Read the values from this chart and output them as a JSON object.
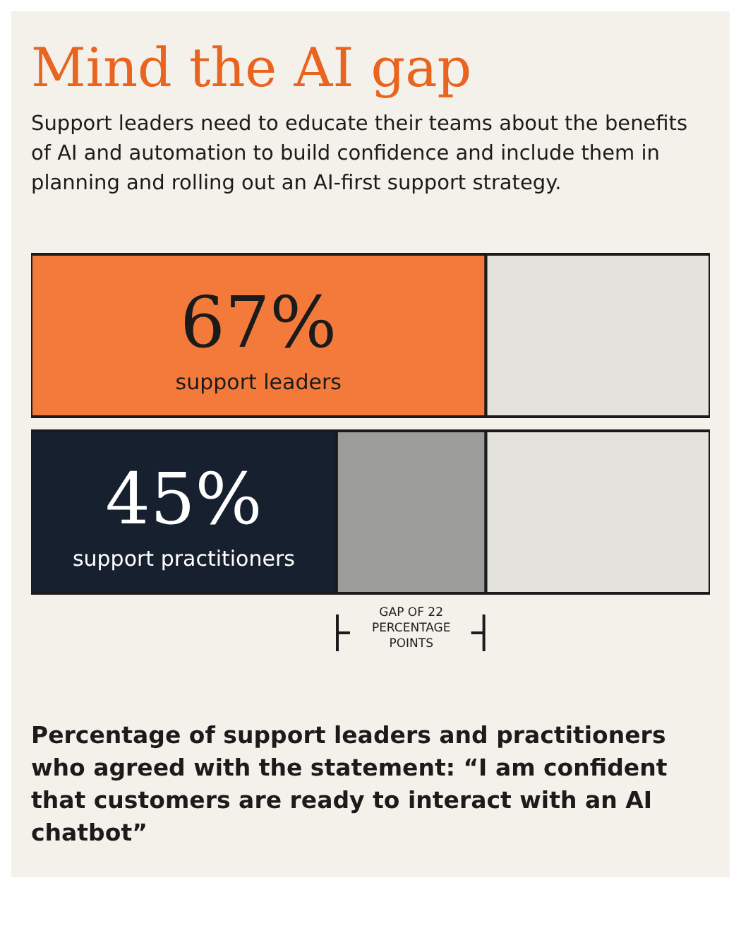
{
  "chart_data": {
    "type": "bar",
    "orientation": "horizontal",
    "stacked": true,
    "title": "Mind the AI gap",
    "subtitle": "Support leaders need to educate their teams about the benefits of AI and automation to build confidence and include them in planning and rolling out an AI-first support strategy.",
    "categories": [
      "support leaders",
      "support practitioners"
    ],
    "xlim": [
      0,
      100
    ],
    "tick_labels": false,
    "grid": false,
    "legend": false,
    "series": [
      {
        "colors": [
          "#f47a3c",
          "#17202e"
        ],
        "values": [
          67,
          45
        ],
        "value_labels": [
          "67%",
          "45%"
        ]
      },
      {
        "color": "#9c9c9a",
        "values": [
          null,
          22
        ]
      },
      {
        "color": "#e4e2dd",
        "values": [
          33,
          33
        ]
      }
    ],
    "annotations": [
      "GAP OF 22 PERCENTAGE POINTS",
      "Percentage of support leaders and practitioners who agreed with the statement: “I am confident that customers are ready to interact with an AI chatbot”"
    ]
  }
}
